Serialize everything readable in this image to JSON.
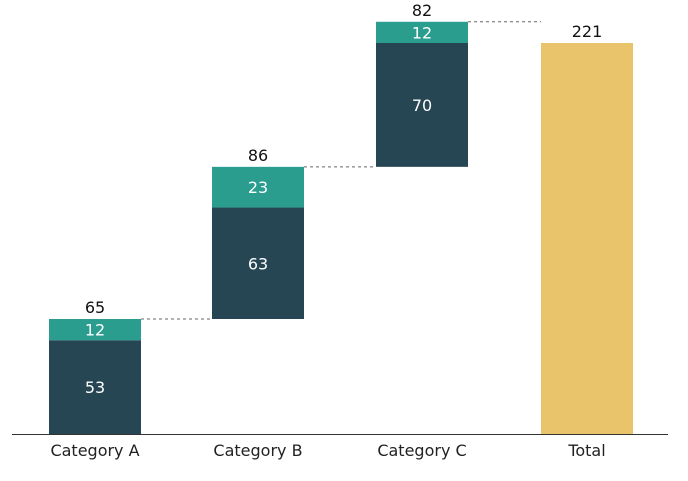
{
  "chart_data": {
    "type": "bar",
    "subtype": "stacked-waterfall",
    "categories": [
      "Category A",
      "Category B",
      "Category C",
      "Total"
    ],
    "series": [
      {
        "values": [
          53,
          63,
          70,
          null
        ],
        "color": "#264653"
      },
      {
        "values": [
          12,
          23,
          12,
          null
        ],
        "color": "#2a9d8f"
      }
    ],
    "totals": [
      65,
      86,
      82,
      221
    ],
    "total_bar_color": "#e9c46a",
    "axis_color": "#333333",
    "connector_color": "#666666",
    "ylim": [
      0,
      221
    ],
    "grid": false,
    "legend": "none"
  }
}
